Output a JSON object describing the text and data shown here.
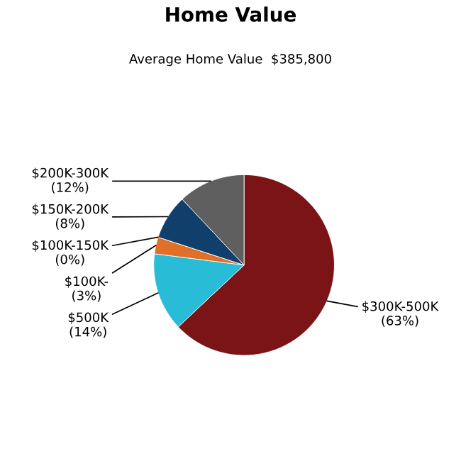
{
  "chart_data": {
    "type": "pie",
    "title": "Home Value",
    "subtitle": "Average Home Value  $385,800",
    "categories": [
      "$300K-500K",
      "$500K",
      "$100K-",
      "$100K-150K",
      "$150K-200K",
      "$200K-300K"
    ],
    "values": [
      63,
      14,
      3,
      0,
      8,
      12
    ],
    "value_labels": [
      "(63%)",
      "(14%)",
      "(3%)",
      "(0%)",
      "(8%)",
      "(12%)"
    ],
    "colors": [
      "#7a1416",
      "#29bcd6",
      "#e07028",
      "#b05020",
      "#0f3f6a",
      "#5f5f5f"
    ]
  }
}
